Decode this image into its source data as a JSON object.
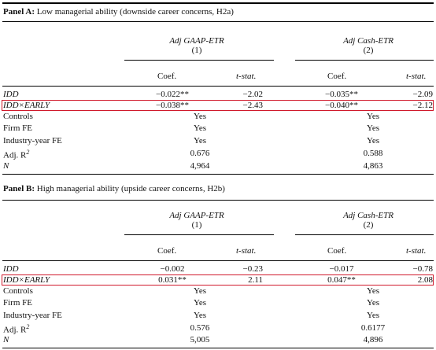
{
  "panelA": {
    "label": "Panel A:",
    "title": "Low managerial ability (downside career concerns, H2a)",
    "col1_header": "Adj GAAP-ETR",
    "col1_num": "(1)",
    "col2_header": "Adj Cash-ETR",
    "col2_num": "(2)",
    "coef_label": "Coef.",
    "tstat_label": "t-stat.",
    "rows": [
      {
        "label": "IDD",
        "c1": "−0.022**",
        "t1": "−2.02",
        "c2": "−0.035**",
        "t2": "−2.09"
      },
      {
        "label": "IDD×EARLY",
        "c1": "−0.038**",
        "t1": "−2.43",
        "c2": "−0.040**",
        "t2": "−2.12"
      }
    ],
    "controls": {
      "label": "Controls",
      "v1": "Yes",
      "v2": "Yes"
    },
    "firm_fe": {
      "label": "Firm FE",
      "v1": "Yes",
      "v2": "Yes"
    },
    "ind_year_fe": {
      "label": "Industry-year FE",
      "v1": "Yes",
      "v2": "Yes"
    },
    "adj_r2": {
      "label": "Adj. R",
      "sup": "2",
      "v1": "0.676",
      "v2": "0.588"
    },
    "n": {
      "label": "N",
      "v1": "4,964",
      "v2": "4,863"
    }
  },
  "panelB": {
    "label": "Panel B:",
    "title": "High managerial ability (upside career concerns, H2b)",
    "col1_header": "Adj GAAP-ETR",
    "col1_num": "(1)",
    "col2_header": "Adj Cash-ETR",
    "col2_num": "(2)",
    "coef_label": "Coef.",
    "tstat_label": "t-stat.",
    "rows": [
      {
        "label": "IDD",
        "c1": "−0.002",
        "t1": "−0.23",
        "c2": "−0.017",
        "t2": "−0.78"
      },
      {
        "label": "IDD×EARLY",
        "c1": "0.031**",
        "t1": "2.11",
        "c2": "0.047**",
        "t2": "2.08"
      }
    ],
    "controls": {
      "label": "Controls",
      "v1": "Yes",
      "v2": "Yes"
    },
    "firm_fe": {
      "label": "Firm FE",
      "v1": "Yes",
      "v2": "Yes"
    },
    "ind_year_fe": {
      "label": "Industry-year FE",
      "v1": "Yes",
      "v2": "Yes"
    },
    "adj_r2": {
      "label": "Adj. R",
      "sup": "2",
      "v1": "0.576",
      "v2": "0.6177"
    },
    "n": {
      "label": "N",
      "v1": "5,005",
      "v2": "4,896"
    }
  },
  "highlight_color": "#d0192b"
}
